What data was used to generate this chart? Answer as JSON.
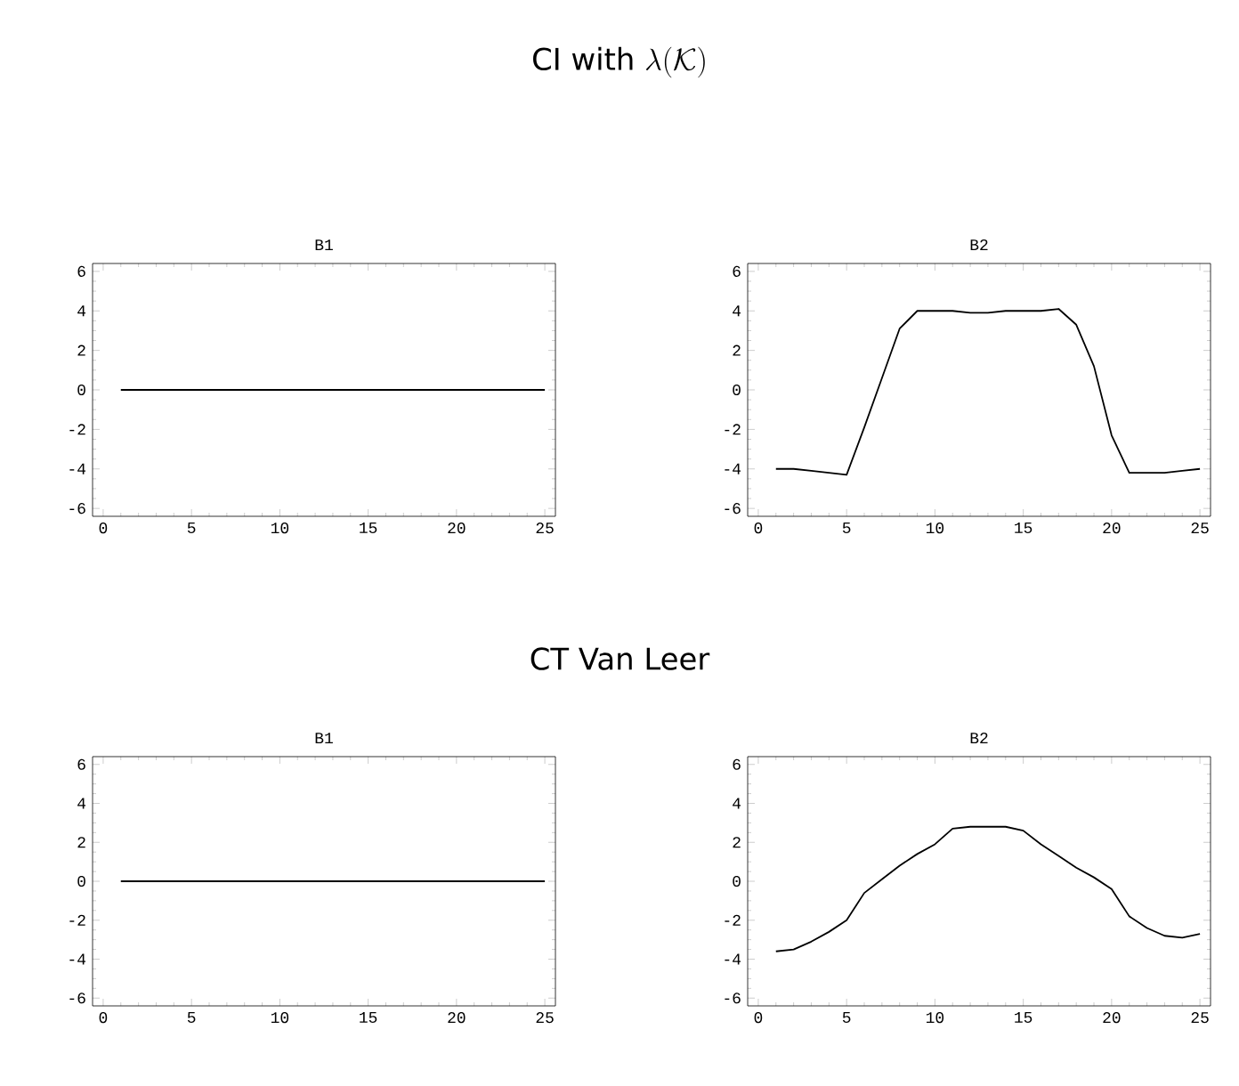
{
  "chart_data": [
    {
      "type": "line",
      "title": "B1",
      "annotations": [
        "\\mbox{CI with }\\lambda(\\mathcal{K})"
      ],
      "x": [
        1,
        25
      ],
      "values": [
        0,
        0
      ],
      "color": "#000000",
      "xlim": [
        -0.6,
        25.6
      ],
      "ylim": [
        -6.4,
        6.4
      ],
      "xticks": [
        0,
        5,
        10,
        15,
        20,
        25
      ],
      "yticks": [
        -6,
        -4,
        -2,
        0,
        2,
        4,
        6
      ],
      "marker": "none",
      "line_style": "solid"
    },
    {
      "type": "line",
      "title": "B2",
      "x": [
        1,
        2,
        3,
        4,
        5,
        6,
        7,
        8,
        9,
        10,
        11,
        12,
        13,
        14,
        15,
        16,
        17,
        18,
        19,
        20,
        21,
        22,
        23,
        24,
        25
      ],
      "values": [
        -4.0,
        -4.0,
        -4.1,
        -4.2,
        -4.3,
        -1.9,
        0.6,
        3.1,
        4.0,
        4.0,
        4.0,
        3.9,
        3.9,
        4.0,
        4.0,
        4.0,
        4.1,
        3.3,
        1.2,
        -2.3,
        -4.2,
        -4.2,
        -4.2,
        -4.1,
        -4.0
      ],
      "color": "#000000",
      "xlim": [
        -0.6,
        25.6
      ],
      "ylim": [
        -6.4,
        6.4
      ],
      "xticks": [
        0,
        5,
        10,
        15,
        20,
        25
      ],
      "yticks": [
        -6,
        -4,
        -2,
        0,
        2,
        4,
        6
      ],
      "marker": "none",
      "line_style": "solid"
    },
    {
      "type": "line",
      "title": "B1",
      "annotations": [
        "CT Van Leer"
      ],
      "x": [
        1,
        25
      ],
      "values": [
        0,
        0
      ],
      "color": "#000000",
      "xlim": [
        -0.6,
        25.6
      ],
      "ylim": [
        -6.4,
        6.4
      ],
      "xticks": [
        0,
        5,
        10,
        15,
        20,
        25
      ],
      "yticks": [
        -6,
        -4,
        -2,
        0,
        2,
        4,
        6
      ],
      "marker": "none",
      "line_style": "solid"
    },
    {
      "type": "line",
      "title": "B2",
      "x": [
        1,
        2,
        3,
        4,
        5,
        6,
        7,
        8,
        9,
        10,
        11,
        12,
        13,
        14,
        15,
        16,
        17,
        18,
        19,
        20,
        21,
        22,
        23,
        24,
        25
      ],
      "values": [
        -3.6,
        -3.5,
        -3.1,
        -2.6,
        -2.0,
        -0.6,
        0.1,
        0.8,
        1.4,
        1.9,
        2.7,
        2.8,
        2.8,
        2.8,
        2.6,
        1.9,
        1.3,
        0.7,
        0.2,
        -0.4,
        -1.8,
        -2.4,
        -2.8,
        -2.9,
        -2.7
      ],
      "color": "#000000",
      "xlim": [
        -0.6,
        25.6
      ],
      "ylim": [
        -6.4,
        6.4
      ],
      "xticks": [
        0,
        5,
        10,
        15,
        20,
        25
      ],
      "yticks": [
        -6,
        -4,
        -2,
        0,
        2,
        4,
        6
      ],
      "marker": "none",
      "line_style": "solid"
    }
  ]
}
